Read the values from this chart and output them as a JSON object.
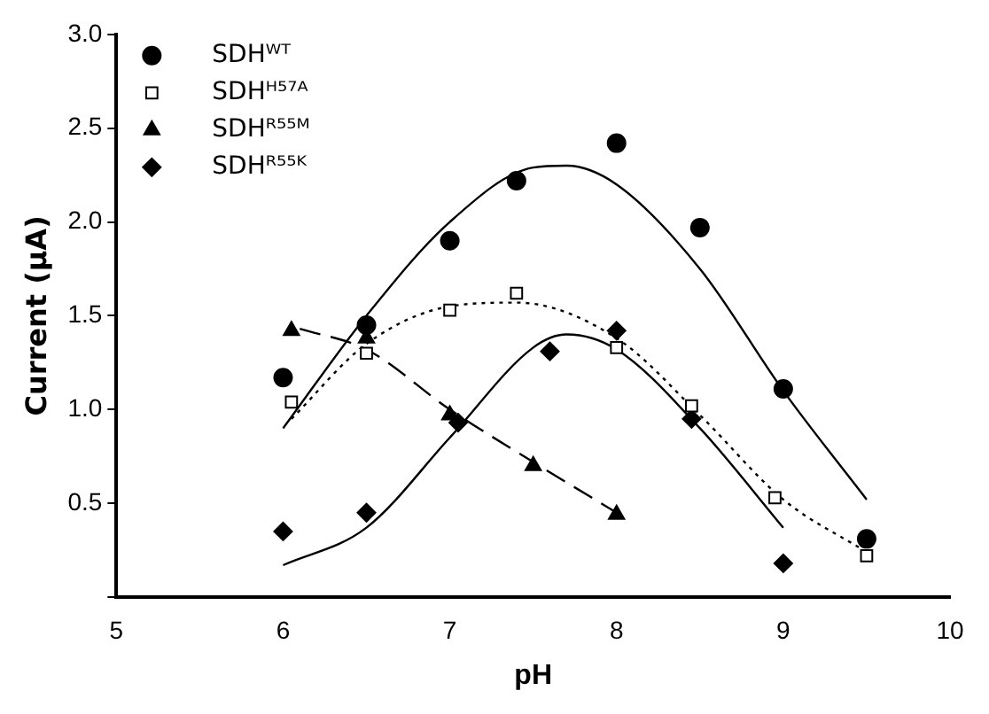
{
  "chart_data": {
    "type": "scatter",
    "xlabel": "pH",
    "ylabel": "Current (μA)",
    "xlim": [
      5,
      10
    ],
    "xticks": [
      5,
      6,
      7,
      8,
      9,
      10
    ],
    "ylim": [
      0,
      3
    ],
    "yticks": [
      {
        "value": 0,
        "label": null
      },
      {
        "value": 0.5,
        "label": "0.5"
      },
      {
        "value": 1,
        "label": "1.0"
      },
      {
        "value": 1.5,
        "label": "1.5"
      },
      {
        "value": 2,
        "label": "2.0"
      },
      {
        "value": 2.5,
        "label": "2.5"
      },
      {
        "value": 3,
        "label": "3.0"
      }
    ],
    "legend": "top left",
    "grid": false,
    "series": [
      {
        "name": "SDHᵂᵀ",
        "color": "#000000",
        "marker": "circle",
        "x": [
          6,
          6.5,
          7,
          7.4,
          8,
          8.5,
          9,
          9.5
        ],
        "values": [
          1.17,
          1.45,
          1.9,
          2.22,
          2.42,
          1.97,
          1.11,
          0.31
        ]
      },
      {
        "name": "SDHᴴ⁵⁷ᴬ",
        "color": "#000000",
        "marker": "square",
        "x": [
          6.05,
          6.5,
          7,
          7.4,
          8,
          8.45,
          8.95,
          9.5
        ],
        "values": [
          1.04,
          1.3,
          1.53,
          1.62,
          1.33,
          1.02,
          0.53,
          0.22
        ]
      },
      {
        "name": "SDHᴿ⁵⁵ᴹ",
        "color": "#000000",
        "marker": "triangle",
        "x": [
          6.05,
          6.5,
          7,
          7.5,
          8
        ],
        "values": [
          1.42,
          1.38,
          0.97,
          0.7,
          0.44
        ]
      },
      {
        "name": "SDHᴿ⁵⁵ᴷ",
        "color": "#000000",
        "marker": "diamond",
        "x": [
          6,
          6.5,
          7.05,
          7.6,
          8,
          8.45,
          9
        ],
        "values": [
          0.35,
          0.45,
          0.93,
          1.31,
          1.42,
          0.95,
          0.18
        ]
      },
      {
        "type": "line",
        "color": "#000000",
        "line_style": "solid",
        "marker": "none",
        "x": [
          6,
          6.5,
          7,
          7.5,
          7.7,
          8,
          8.5,
          9,
          9.5
        ],
        "values": [
          0.9,
          1.5,
          2.0,
          2.29,
          2.3,
          2.2,
          1.75,
          1.1,
          0.52
        ]
      },
      {
        "type": "line",
        "color": "#000000",
        "line_style": "dotted",
        "marker": "none",
        "x": [
          6.05,
          6.5,
          7,
          7.4,
          8,
          8.5,
          9,
          9.5
        ],
        "values": [
          0.95,
          1.35,
          1.55,
          1.57,
          1.38,
          0.97,
          0.52,
          0.24
        ]
      },
      {
        "type": "line",
        "color": "#000000",
        "line_style": "dashed",
        "marker": "none",
        "x": [
          6.1,
          6.5,
          7,
          7.5,
          8
        ],
        "values": [
          1.43,
          1.32,
          1.0,
          0.72,
          0.45
        ]
      },
      {
        "type": "line",
        "color": "#000000",
        "line_style": "solid",
        "marker": "none",
        "x": [
          6,
          6.5,
          7,
          7.5,
          7.7,
          8,
          8.5,
          9
        ],
        "values": [
          0.17,
          0.37,
          0.85,
          1.33,
          1.4,
          1.32,
          0.9,
          0.37
        ]
      }
    ]
  }
}
